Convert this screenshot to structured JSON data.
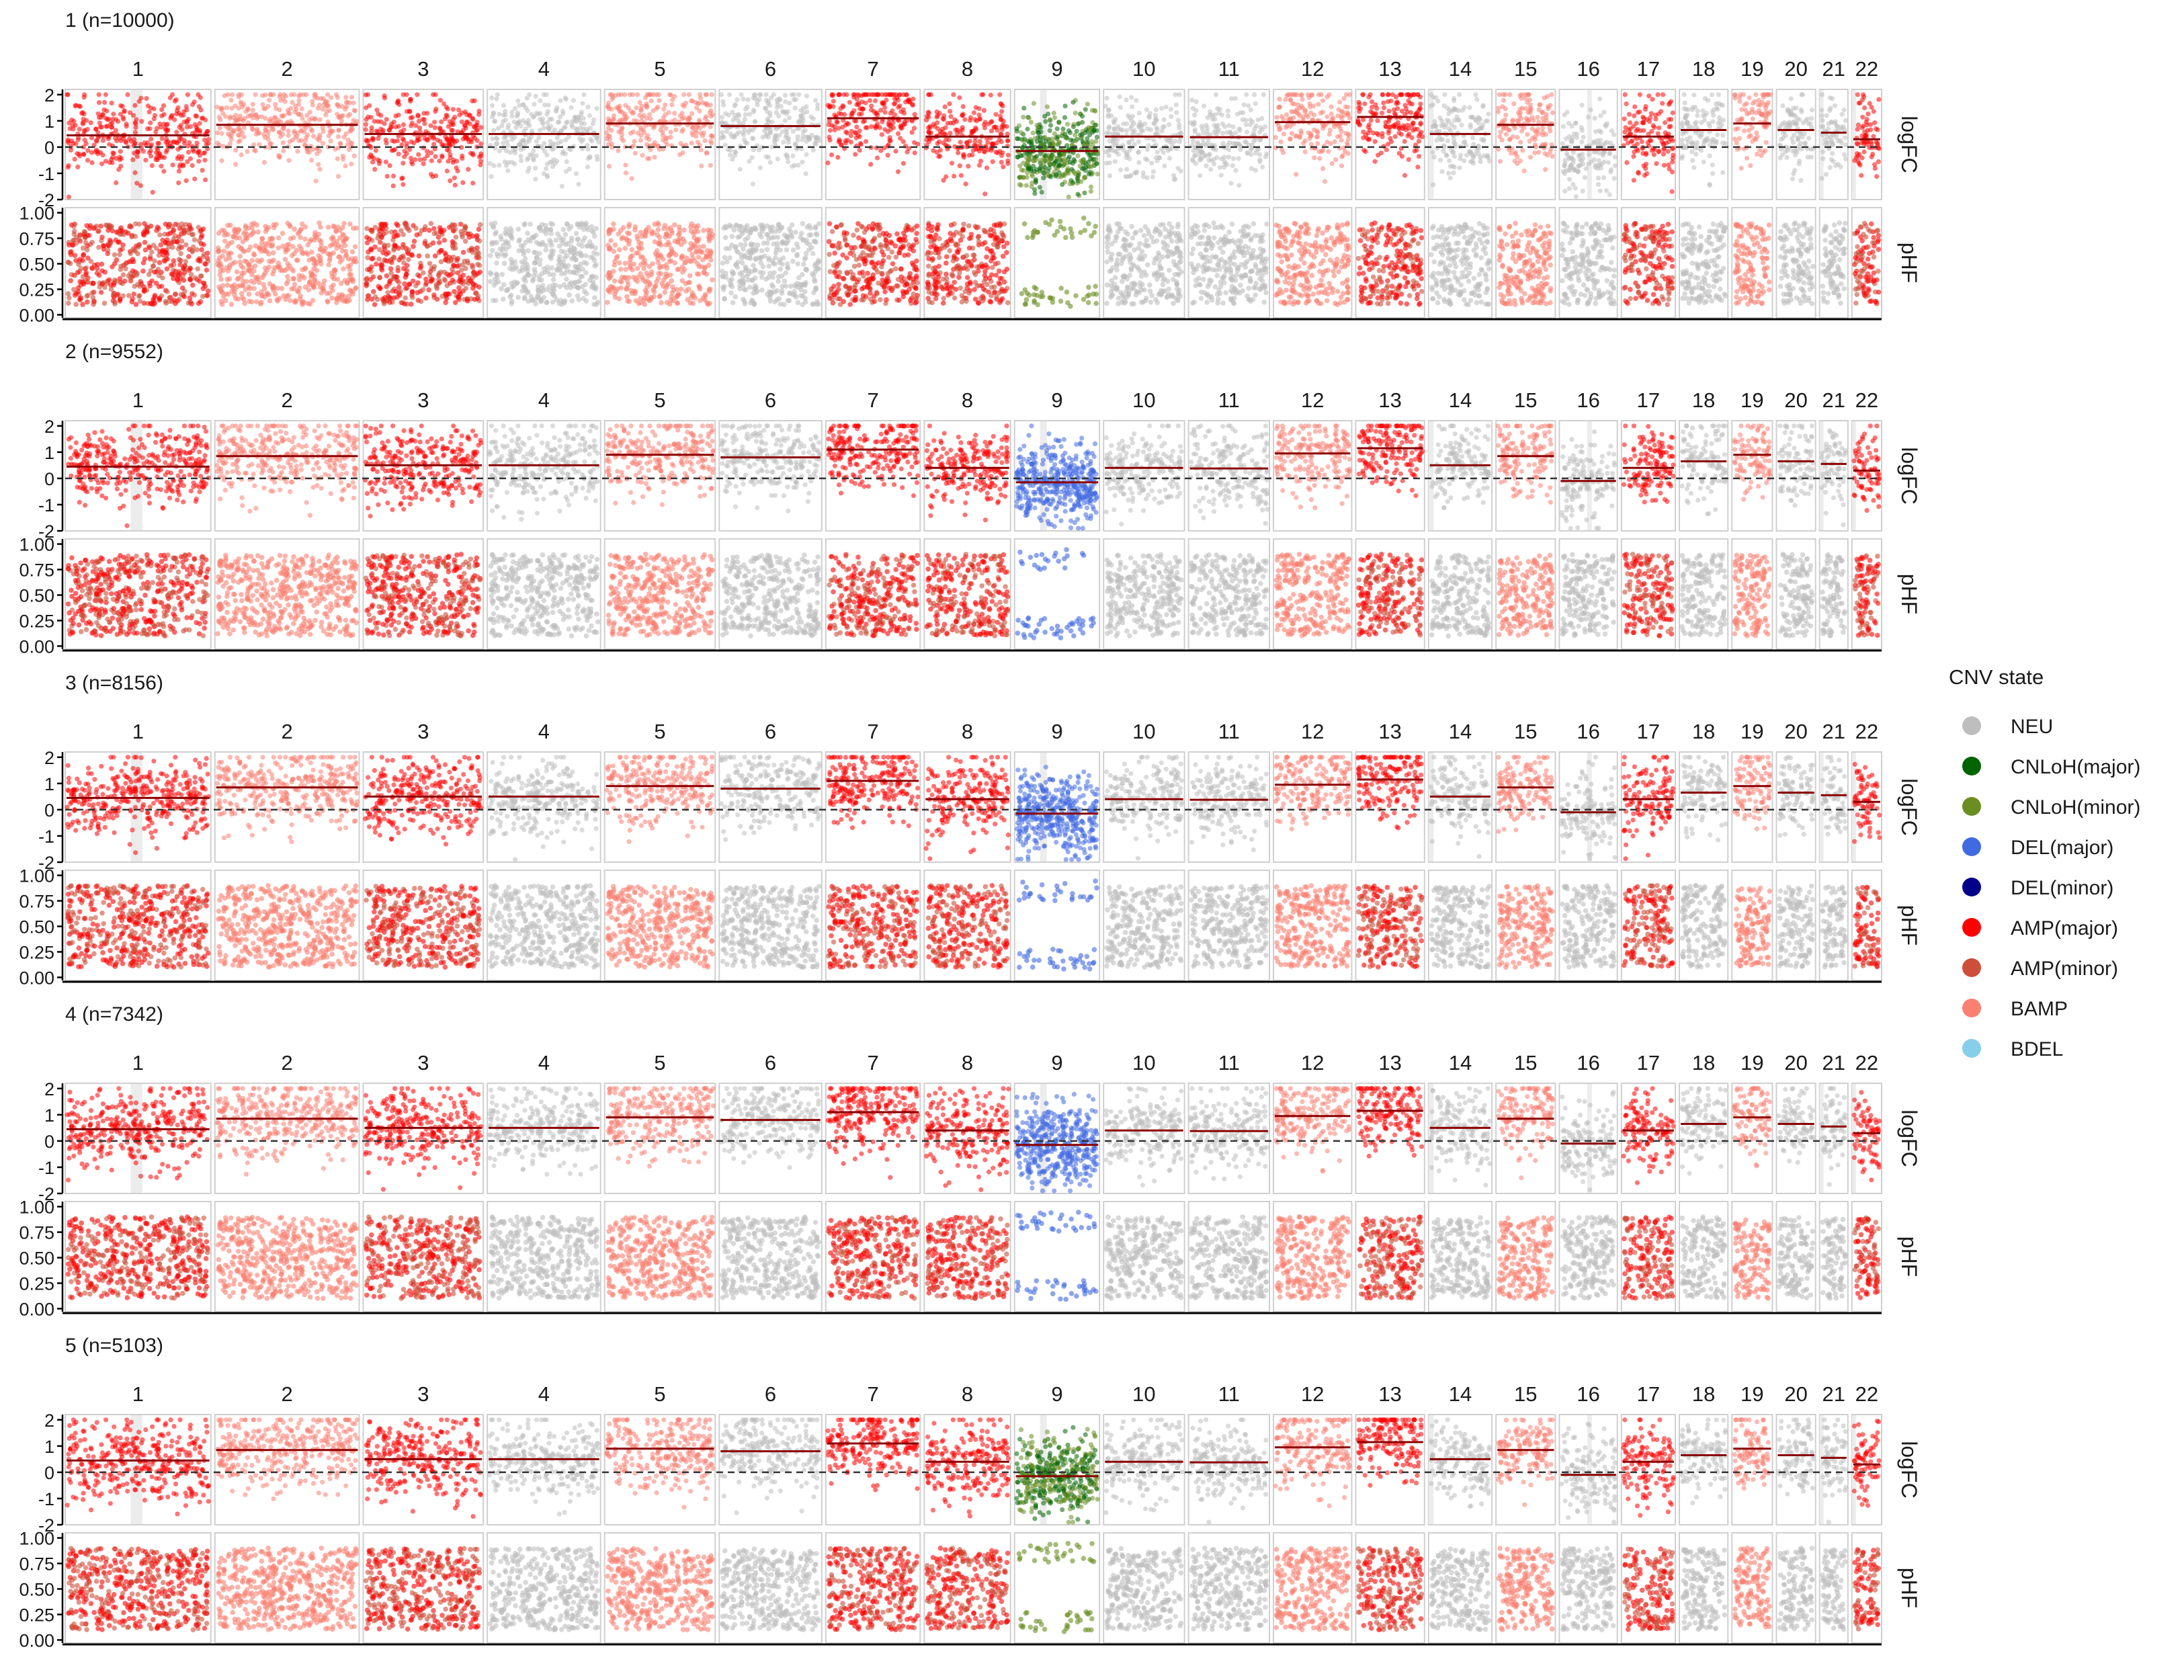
{
  "chart_data": {
    "type": "scatter",
    "title": "",
    "chromosomes": [
      "1",
      "2",
      "3",
      "4",
      "5",
      "6",
      "7",
      "8",
      "9",
      "10",
      "11",
      "12",
      "13",
      "14",
      "15",
      "16",
      "17",
      "18",
      "19",
      "20",
      "21",
      "22"
    ],
    "chrom_widths": [
      108,
      107,
      89,
      84,
      82,
      76,
      70,
      64,
      63,
      60,
      60,
      58,
      51,
      47,
      44,
      43,
      40,
      36,
      30,
      29,
      21,
      22
    ],
    "facets": [
      {
        "label": "1 (n=10000)",
        "chr9_state": "CNLoH"
      },
      {
        "label": "2 (n=9552)",
        "chr9_state": "DEL"
      },
      {
        "label": "3 (n=8156)",
        "chr9_state": "DEL"
      },
      {
        "label": "4 (n=7342)",
        "chr9_state": "DEL"
      },
      {
        "label": "5 (n=5103)",
        "chr9_state": "CNLoH"
      }
    ],
    "chrom_states": {
      "1": "AMP",
      "2": "BAMP",
      "3": "AMP",
      "4": "NEU",
      "5": "BAMP",
      "6": "NEU",
      "7": "AMP",
      "8": "AMP",
      "9": "VAR",
      "10": "NEU",
      "11": "NEU",
      "12": "BAMP",
      "13": "AMP",
      "14": "NEU",
      "15": "BAMP",
      "16": "NEU",
      "17": "AMP",
      "18": "NEU",
      "19": "BAMP",
      "20": "NEU",
      "21": "NEU",
      "22": "AMP"
    },
    "segment_means": {
      "1": 0.45,
      "2": 0.85,
      "3": 0.5,
      "4": 0.5,
      "5": 0.9,
      "6": 0.8,
      "7": 1.1,
      "8": 0.4,
      "9": -0.15,
      "10": 0.4,
      "11": 0.38,
      "12": 0.95,
      "13": 1.15,
      "14": 0.5,
      "15": 0.85,
      "16": -0.1,
      "17": 0.4,
      "18": 0.65,
      "19": 0.9,
      "20": 0.65,
      "21": 0.55,
      "22": 0.3
    },
    "logFC": {
      "label": "logFC",
      "ylim": [
        -2,
        2.2
      ],
      "ticks": [
        2,
        1,
        0,
        -1,
        -2
      ]
    },
    "pHF": {
      "label": "pHF",
      "ylim": [
        -0.03,
        1.05
      ],
      "ticks": [
        "0.00",
        "0.25",
        "0.50",
        "0.75",
        "1.00"
      ]
    },
    "legend": {
      "title": "CNV state",
      "position": "right",
      "items": [
        {
          "label": "NEU",
          "color": "#bebebe"
        },
        {
          "label": "CNLoH(major)",
          "color": "#006400"
        },
        {
          "label": "CNLoH(minor)",
          "color": "#6b8e23"
        },
        {
          "label": "DEL(major)",
          "color": "#4169e1"
        },
        {
          "label": "DEL(minor)",
          "color": "#00008b"
        },
        {
          "label": "AMP(major)",
          "color": "#ff0000"
        },
        {
          "label": "AMP(minor)",
          "color": "#cd4f39"
        },
        {
          "label": "BAMP",
          "color": "#fa8072"
        },
        {
          "label": "BDEL",
          "color": "#87ceeb"
        }
      ]
    }
  }
}
